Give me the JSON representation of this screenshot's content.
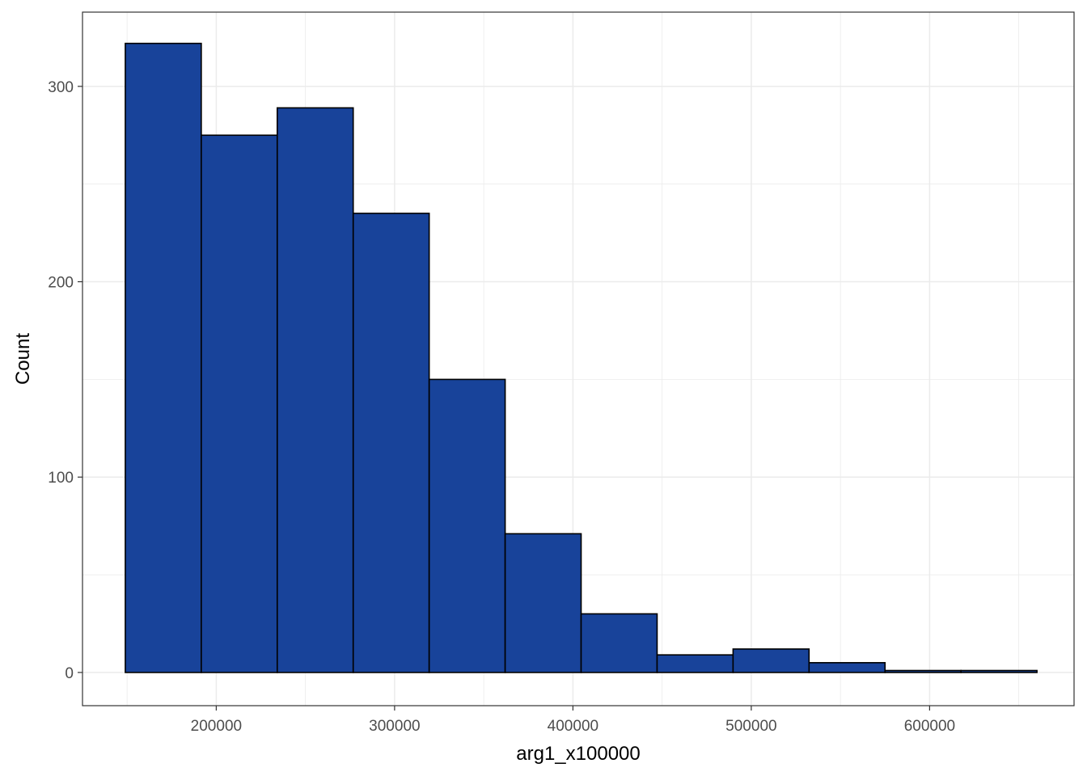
{
  "chart_data": {
    "type": "bar",
    "subtype": "histogram",
    "title": "",
    "xlabel": "arg1_x100000",
    "ylabel": "Count",
    "bin_edges": [
      149000,
      191600,
      234200,
      276800,
      319400,
      362000,
      404600,
      447200,
      489800,
      532400,
      575000,
      617600,
      660200
    ],
    "values": [
      322,
      275,
      289,
      235,
      150,
      71,
      30,
      9,
      12,
      5,
      1,
      1
    ],
    "xlim": [
      125000,
      681000
    ],
    "ylim": [
      -17,
      338
    ],
    "x_ticks": [
      200000,
      300000,
      400000,
      500000,
      600000
    ],
    "x_tick_labels": [
      "200000",
      "300000",
      "400000",
      "500000",
      "600000"
    ],
    "y_ticks": [
      0,
      100,
      200,
      300
    ],
    "y_tick_labels": [
      "0",
      "100",
      "200",
      "300"
    ],
    "grid": true,
    "legend": "none",
    "colors": {
      "bar_fill": "#18439A",
      "bar_outline": "#000000",
      "grid": "#EBEBEB",
      "panel_border": "#333333"
    }
  }
}
